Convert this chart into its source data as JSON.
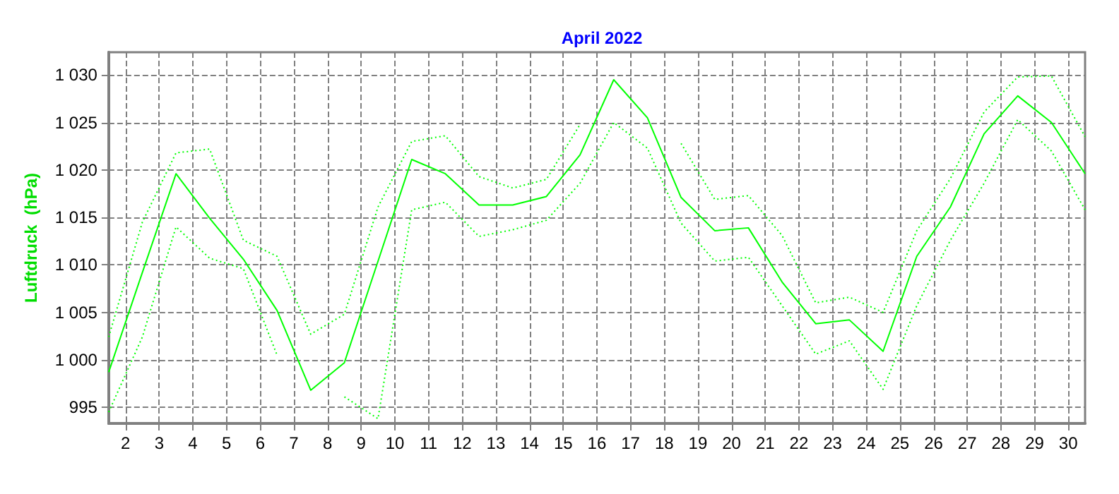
{
  "chart_data": {
    "type": "line",
    "title": "April 2022",
    "ylabel": "Luftdruck  (hPa)",
    "x": [
      1.5,
      2.5,
      3.5,
      4.5,
      5.5,
      6.5,
      7.5,
      8.5,
      9.5,
      10.5,
      11.5,
      12.5,
      13.5,
      14.5,
      15.5,
      16.5,
      17.5,
      18.5,
      19.5,
      20.5,
      21.5,
      22.5,
      23.5,
      24.5,
      25.5,
      26.5,
      27.5,
      28.5,
      29.5,
      30.5
    ],
    "series": [
      {
        "color": "#00ff00",
        "line_style": "solid",
        "values": [
          998.7,
          1009.2,
          1019.6,
          1014.9,
          1010.6,
          1005.2,
          996.8,
          999.7,
          1010.4,
          1021.1,
          1019.6,
          1016.3,
          1016.3,
          1017.2,
          1021.6,
          1029.5,
          1025.5,
          1017.1,
          1013.6,
          1013.9,
          1008.2,
          1003.8,
          1004.2,
          1000.9,
          1010.9,
          1016.1,
          1023.8,
          1027.8,
          1025.0,
          1019.6
        ]
      },
      {
        "color": "#00ff00",
        "line_style": "dotted",
        "values": [
          1002.4,
          1014.5,
          1021.8,
          1022.2,
          1012.6,
          1010.9,
          1002.7,
          1004.8,
          1016.1,
          1023.0,
          1023.6,
          1019.3,
          1018.1,
          1019.0,
          1024.8,
          null,
          null,
          1022.8,
          1016.9,
          1017.3,
          1013.1,
          1006.0,
          1006.6,
          1005.0,
          1013.6,
          1019.1,
          1026.1,
          1029.8,
          1029.9,
          1023.5
        ]
      },
      {
        "color": "#00ff00",
        "line_style": "dotted",
        "values": [
          994.5,
          1002.4,
          1014.0,
          1010.7,
          1009.6,
          1000.5,
          null,
          996.1,
          993.8,
          1015.8,
          1016.6,
          1013.0,
          1013.7,
          1014.7,
          1018.6,
          1025.0,
          1022.3,
          1014.4,
          1010.4,
          1010.8,
          1005.7,
          1000.6,
          1002.0,
          996.9,
          1005.7,
          1012.6,
          1018.6,
          1025.3,
          1022.0,
          1015.8
        ]
      }
    ],
    "xlim": [
      1.5,
      30.5
    ],
    "xticks": [
      2,
      3,
      4,
      5,
      6,
      7,
      8,
      9,
      10,
      11,
      12,
      13,
      14,
      15,
      16,
      17,
      18,
      19,
      20,
      21,
      22,
      23,
      24,
      25,
      26,
      27,
      28,
      29,
      30
    ],
    "ylim": [
      993.3,
      1032.4
    ],
    "yticks": [
      {
        "value": 995,
        "label": "995"
      },
      {
        "value": 1000,
        "label": "1 000"
      },
      {
        "value": 1005,
        "label": "1 005"
      },
      {
        "value": 1010,
        "label": "1 010"
      },
      {
        "value": 1015,
        "label": "1 015"
      },
      {
        "value": 1020,
        "label": "1 020"
      },
      {
        "value": 1025,
        "label": "1 025"
      },
      {
        "value": 1030,
        "label": "1 030"
      }
    ],
    "grid": true,
    "marker": "none"
  }
}
